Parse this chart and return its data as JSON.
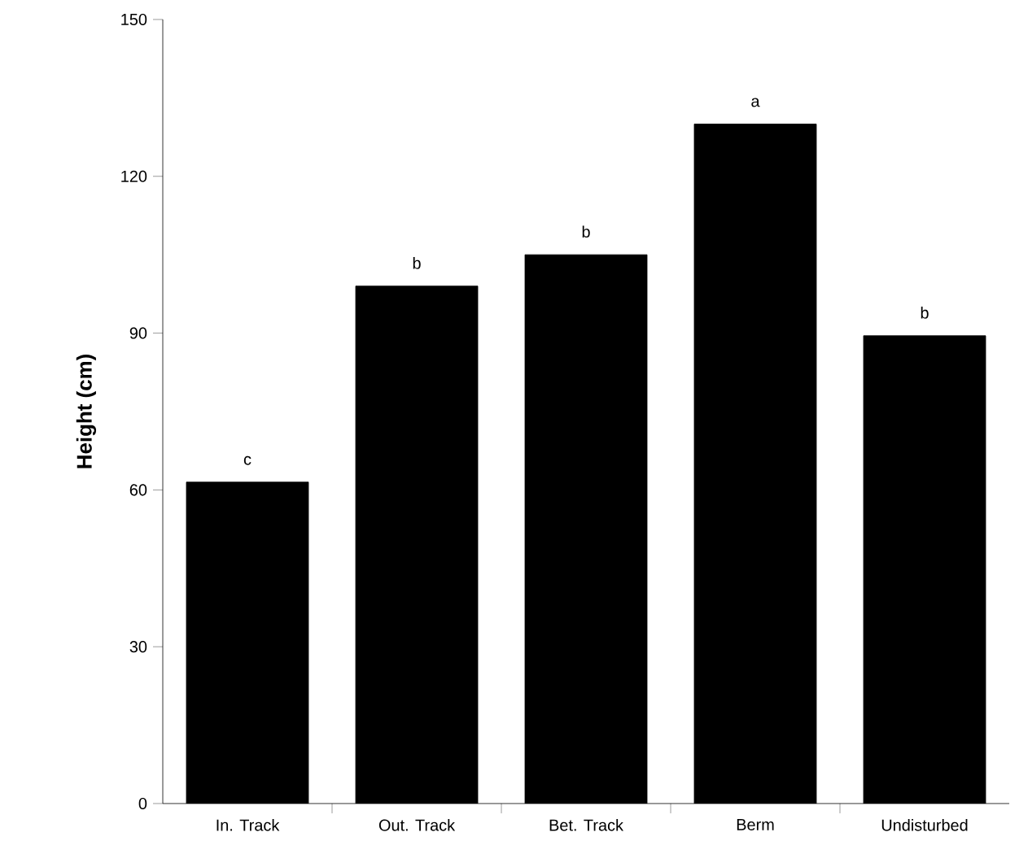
{
  "chart_data": {
    "type": "bar",
    "ylabel": "Height (cm)",
    "categories": [
      "In. Track",
      "Out. Track",
      "Bet. Track",
      "Berm",
      "Undisturbed"
    ],
    "values": [
      61.5,
      99,
      105,
      130,
      89.5
    ],
    "color": "#000000",
    "ylim": [
      0,
      150
    ],
    "yticks": [
      0,
      30,
      60,
      90,
      120,
      150
    ],
    "annotations": [
      {
        "text": "c",
        "x": "In. Track",
        "y": 61.5
      },
      {
        "text": "b",
        "x": "Out. Track",
        "y": 99
      },
      {
        "text": "b",
        "x": "Bet. Track",
        "y": 105
      },
      {
        "text": "a",
        "x": "Berm",
        "y": 130
      },
      {
        "text": "b",
        "x": "Undisturbed",
        "y": 89.5
      }
    ]
  }
}
